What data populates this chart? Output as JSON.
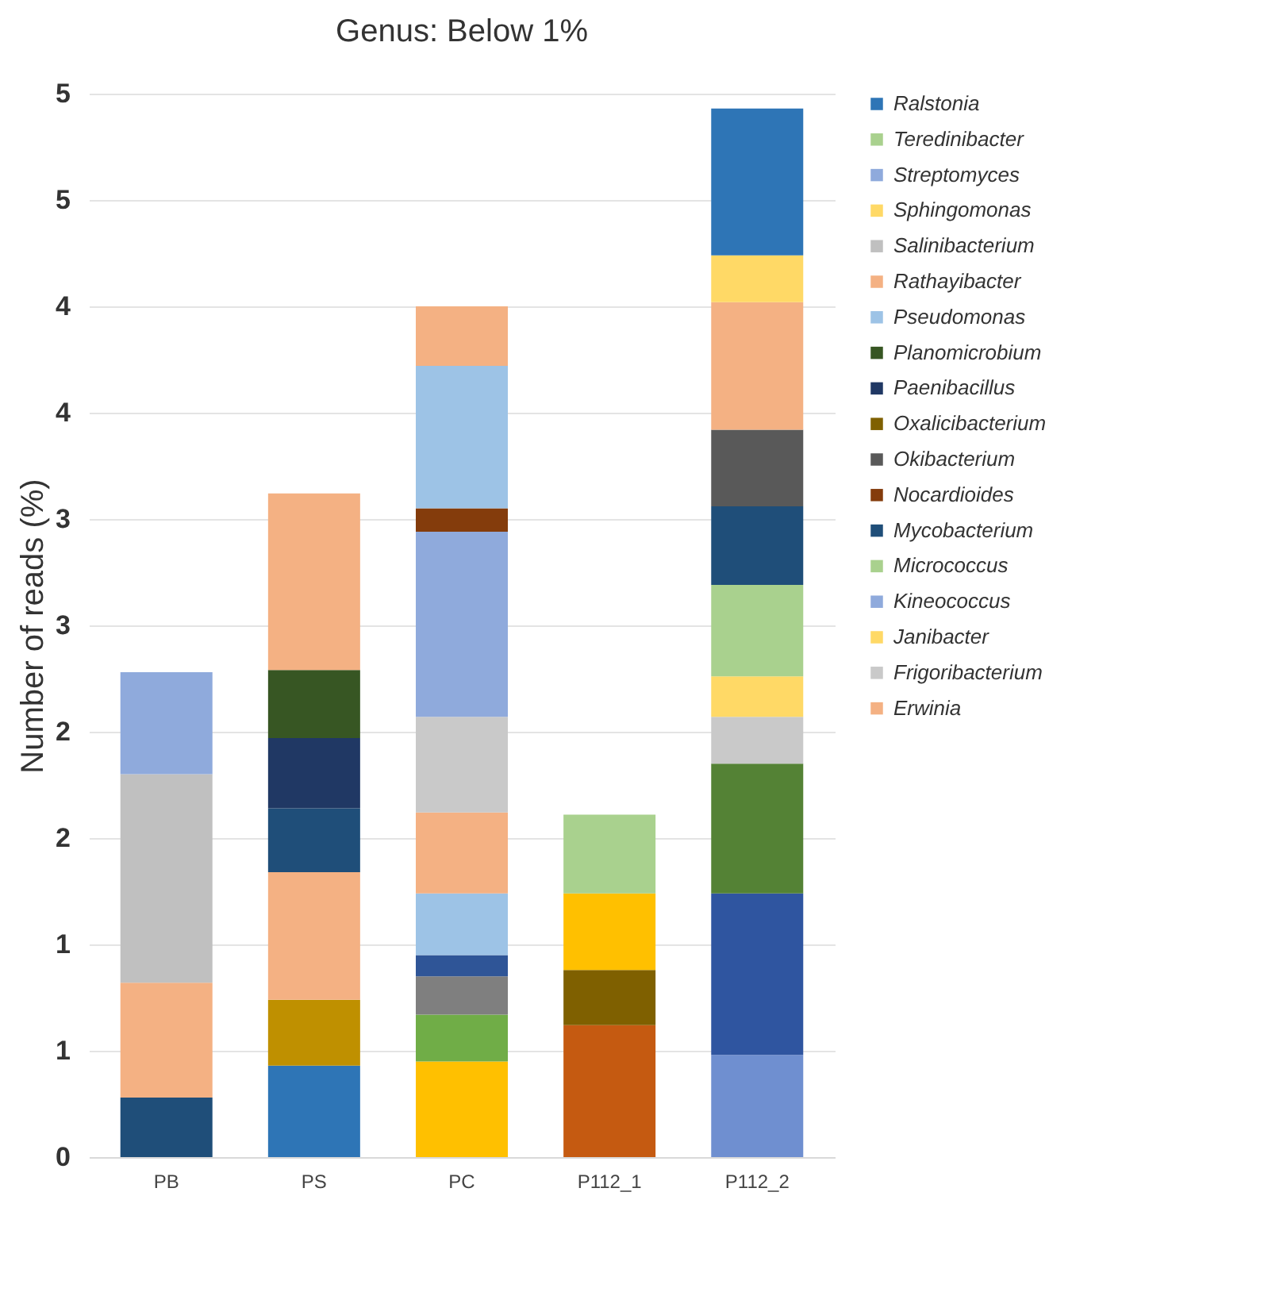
{
  "chart_data": {
    "type": "bar",
    "title": "Genus: Below 1%",
    "ylabel": "Number of reads (%)",
    "categories": [
      "PB",
      "PS",
      "PC",
      "P112_1",
      "P112_2"
    ],
    "stacked": true,
    "ylim": [
      0,
      5
    ],
    "yticks": [
      0,
      {
        "value": 0.5,
        "label": "1"
      },
      1,
      {
        "value": 1.5,
        "label": "2"
      },
      2,
      {
        "value": 2.5,
        "label": "3"
      },
      3,
      {
        "value": 3.5,
        "label": "4"
      },
      4,
      {
        "value": 4.5,
        "label": "5"
      },
      5
    ],
    "grid": "y",
    "legend": "right",
    "series": [
      {
        "color": "#2e75b6",
        "values": [
          null,
          0.43,
          null,
          null,
          null
        ]
      },
      {
        "color": "#bf9000",
        "values": [
          null,
          0.31,
          null,
          null,
          null
        ]
      },
      {
        "name": "Erwinia",
        "color": "#f4b183",
        "values": [
          null,
          0.6,
          null,
          null,
          null
        ]
      },
      {
        "color": "#6f8fd0",
        "values": [
          null,
          null,
          null,
          null,
          0.48
        ]
      },
      {
        "color": "#2f55a0",
        "values": [
          null,
          null,
          null,
          null,
          0.76
        ]
      },
      {
        "color": "#548235",
        "values": [
          null,
          null,
          null,
          null,
          0.61
        ]
      },
      {
        "name": "Frigoribacterium",
        "color": "#c9c9c9",
        "values": [
          null,
          null,
          null,
          null,
          0.22
        ]
      },
      {
        "name": "Janibacter",
        "color": "#ffd966",
        "values": [
          null,
          null,
          null,
          null,
          0.19
        ]
      },
      {
        "color": "#ffc000",
        "values": [
          null,
          null,
          0.45,
          null,
          null
        ]
      },
      {
        "color": "#70ad47",
        "values": [
          null,
          null,
          0.22,
          null,
          null
        ]
      },
      {
        "color": "#7f7f7f",
        "values": [
          null,
          null,
          0.18,
          null,
          null
        ]
      },
      {
        "color": "#2f5597",
        "values": [
          null,
          null,
          0.1,
          null,
          null
        ]
      },
      {
        "color": "#9dc3e6",
        "values": [
          null,
          null,
          0.29,
          null,
          null
        ]
      },
      {
        "color": "#f4b183",
        "values": [
          null,
          null,
          0.38,
          null,
          null
        ]
      },
      {
        "color": "#c9c9c9",
        "values": [
          null,
          null,
          0.45,
          null,
          null
        ]
      },
      {
        "name": "Kineococcus",
        "color": "#8faadc",
        "values": [
          null,
          null,
          0.87,
          null,
          null
        ]
      },
      {
        "name": "Micrococcus",
        "color": "#a9d18e",
        "values": [
          null,
          null,
          null,
          null,
          0.43
        ]
      },
      {
        "name": "Mycobacterium",
        "color": "#1f4e79",
        "values": [
          null,
          null,
          null,
          null,
          0.37
        ]
      },
      {
        "name": "Nocardioides",
        "color": "#843c0c",
        "values": [
          null,
          null,
          0.11,
          null,
          null
        ]
      },
      {
        "name": "Okibacterium",
        "color": "#595959",
        "values": [
          null,
          null,
          null,
          null,
          0.36
        ]
      },
      {
        "color": "#c55a11",
        "values": [
          null,
          null,
          null,
          0.62,
          null
        ]
      },
      {
        "name": "Oxalicibacterium",
        "color": "#7f6000",
        "values": [
          null,
          null,
          null,
          0.26,
          null
        ]
      },
      {
        "color": "#1f4e79",
        "values": [
          null,
          0.3,
          null,
          null,
          null
        ]
      },
      {
        "name": "Paenibacillus",
        "color": "#203864",
        "values": [
          null,
          0.33,
          null,
          null,
          null
        ]
      },
      {
        "name": "Planomicrobium",
        "color": "#375623",
        "values": [
          null,
          0.32,
          null,
          null,
          null
        ]
      },
      {
        "name": "Pseudomonas",
        "color": "#9dc3e6",
        "values": [
          null,
          null,
          0.67,
          null,
          null
        ]
      },
      {
        "color": "#f4b183",
        "values": [
          null,
          null,
          0.28,
          null,
          null
        ]
      },
      {
        "color": "#1f4e79",
        "values": [
          0.28,
          null,
          null,
          null,
          null
        ]
      },
      {
        "name": "Rathayibacter",
        "color": "#f4b183",
        "values": [
          0.54,
          null,
          null,
          null,
          null
        ]
      },
      {
        "name": "Salinibacterium",
        "color": "#c0c0c0",
        "values": [
          0.98,
          null,
          null,
          null,
          null
        ]
      },
      {
        "color": "#f4b183",
        "values": [
          null,
          null,
          null,
          null,
          0.6
        ]
      },
      {
        "name": "Sphingomonas",
        "color": "#ffd966",
        "values": [
          null,
          null,
          null,
          null,
          0.22
        ]
      },
      {
        "name": "Streptomyces",
        "color": "#8faadc",
        "values": [
          0.48,
          null,
          null,
          null,
          null
        ]
      },
      {
        "color": "#ffc000",
        "values": [
          null,
          null,
          null,
          0.36,
          null
        ]
      },
      {
        "name": "Teredinibacter",
        "color": "#a9d18e",
        "values": [
          null,
          null,
          null,
          0.37,
          null
        ]
      },
      {
        "color": "#f4b183",
        "values": [
          null,
          0.83,
          null,
          null,
          null
        ]
      },
      {
        "name": "Ralstonia",
        "color": "#2e75b6",
        "values": [
          null,
          null,
          null,
          null,
          0.69
        ]
      }
    ]
  }
}
